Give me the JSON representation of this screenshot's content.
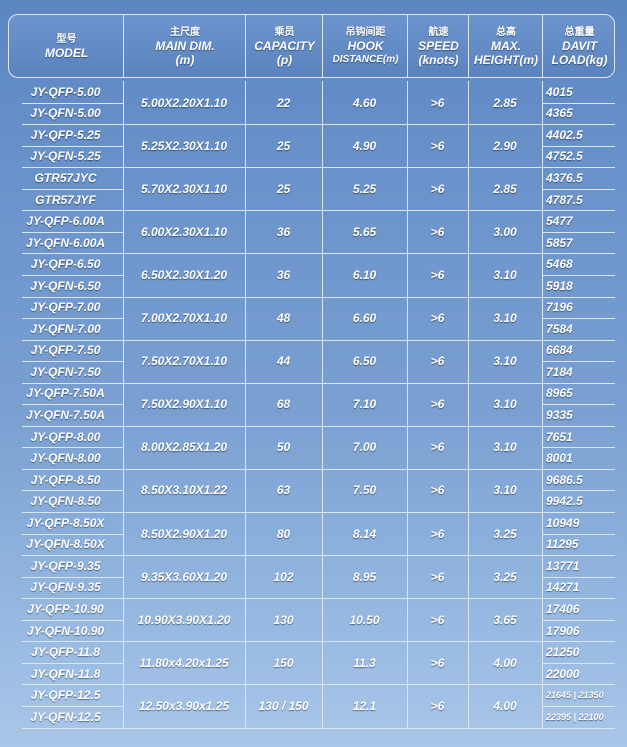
{
  "header": {
    "model": {
      "cn": "型号",
      "en": "MODEL",
      "unit": ""
    },
    "main_dim": {
      "cn": "主尺度",
      "en": "MAIN DIM.",
      "unit": "(m)"
    },
    "capacity": {
      "cn": "乘员",
      "en": "CAPACITY",
      "unit": "(p)"
    },
    "hook": {
      "cn": "吊钩间距",
      "en": "HOOK",
      "unit": "DISTANCE(m)"
    },
    "speed": {
      "cn": "航速",
      "en": "SPEED",
      "unit": "(knots)"
    },
    "height": {
      "cn": "总高",
      "en": "MAX.",
      "unit": "HEIGHT(m)"
    },
    "load": {
      "cn": "总重量",
      "en": "DAVIT",
      "unit": "LOAD(kg)"
    }
  },
  "rows": [
    {
      "models": [
        "JY-QFP-5.00",
        "JY-QFN-5.00"
      ],
      "dim": "5.00X2.20X1.10",
      "capacity": "22",
      "hook": "4.60",
      "speed": ">6",
      "height": "2.85",
      "loads": [
        "4015",
        "4365"
      ]
    },
    {
      "models": [
        "JY-QFP-5.25",
        "JY-QFN-5.25"
      ],
      "dim": "5.25X2.30X1.10",
      "capacity": "25",
      "hook": "4.90",
      "speed": ">6",
      "height": "2.90",
      "loads": [
        "4402.5",
        "4752.5"
      ]
    },
    {
      "models": [
        "GTR57JYC",
        "GTR57JYF"
      ],
      "dim": "5.70X2.30X1.10",
      "capacity": "25",
      "hook": "5.25",
      "speed": ">6",
      "height": "2.85",
      "loads": [
        "4376.5",
        "4787.5"
      ]
    },
    {
      "models": [
        "JY-QFP-6.00A",
        "JY-QFN-6.00A"
      ],
      "dim": "6.00X2.30X1.10",
      "capacity": "36",
      "hook": "5.65",
      "speed": ">6",
      "height": "3.00",
      "loads": [
        "5477",
        "5857"
      ]
    },
    {
      "models": [
        "JY-QFP-6.50",
        "JY-QFN-6.50"
      ],
      "dim": "6.50X2.30X1.20",
      "capacity": "36",
      "hook": "6.10",
      "speed": ">6",
      "height": "3.10",
      "loads": [
        "5468",
        "5918"
      ]
    },
    {
      "models": [
        "JY-QFP-7.00",
        "JY-QFN-7.00"
      ],
      "dim": "7.00X2.70X1.10",
      "capacity": "48",
      "hook": "6.60",
      "speed": ">6",
      "height": "3.10",
      "loads": [
        "7196",
        "7584"
      ]
    },
    {
      "models": [
        "JY-QFP-7.50",
        "JY-QFN-7.50"
      ],
      "dim": "7.50X2.70X1.10",
      "capacity": "44",
      "hook": "6.50",
      "speed": ">6",
      "height": "3.10",
      "loads": [
        "6684",
        "7184"
      ]
    },
    {
      "models": [
        "JY-QFP-7.50A",
        "JY-QFN-7.50A"
      ],
      "dim": "7.50X2.90X1.10",
      "capacity": "68",
      "hook": "7.10",
      "speed": ">6",
      "height": "3.10",
      "loads": [
        "8965",
        "9335"
      ]
    },
    {
      "models": [
        "JY-QFP-8.00",
        "JY-QFN-8.00"
      ],
      "dim": "8.00X2.85X1.20",
      "capacity": "50",
      "hook": "7.00",
      "speed": ">6",
      "height": "3.10",
      "loads": [
        "7651",
        "8001"
      ]
    },
    {
      "models": [
        "JY-QFP-8.50",
        "JY-QFN-8.50"
      ],
      "dim": "8.50X3.10X1.22",
      "capacity": "63",
      "hook": "7.50",
      "speed": ">6",
      "height": "3.10",
      "loads": [
        "9686.5",
        "9942.5"
      ]
    },
    {
      "models": [
        "JY-QFP-8.50X",
        "JY-QFN-8.50X"
      ],
      "dim": "8.50X2.90X1.20",
      "capacity": "80",
      "hook": "8.14",
      "speed": ">6",
      "height": "3.25",
      "loads": [
        "10949",
        "11295"
      ]
    },
    {
      "models": [
        "JY-QFP-9.35",
        "JY-QFN-9.35"
      ],
      "dim": "9.35X3.60X1.20",
      "capacity": "102",
      "hook": "8.95",
      "speed": ">6",
      "height": "3.25",
      "loads": [
        "13771",
        "14271"
      ]
    },
    {
      "models": [
        "JY-QFP-10.90",
        "JY-QFN-10.90"
      ],
      "dim": "10.90X3.90X1.20",
      "capacity": "130",
      "hook": "10.50",
      "speed": ">6",
      "height": "3.65",
      "loads": [
        "17406",
        "17906"
      ]
    },
    {
      "models": [
        "JY-QFP-11.8",
        "JY-QFN-11.8"
      ],
      "dim": "11.80x4.20x1.25",
      "capacity": "150",
      "hook": "11.3",
      "speed": ">6",
      "height": "4.00",
      "loads": [
        "21250",
        "22000"
      ]
    },
    {
      "models": [
        "JY-QFP-12.5",
        "JY-QFN-12.5"
      ],
      "dim": "12.50x3.90x1.25",
      "capacity": "130 / 150",
      "hook": "12.1",
      "speed": ">6",
      "height": "4.00",
      "loads": [
        "21645 | 21350",
        "22395 | 22100"
      ]
    }
  ]
}
